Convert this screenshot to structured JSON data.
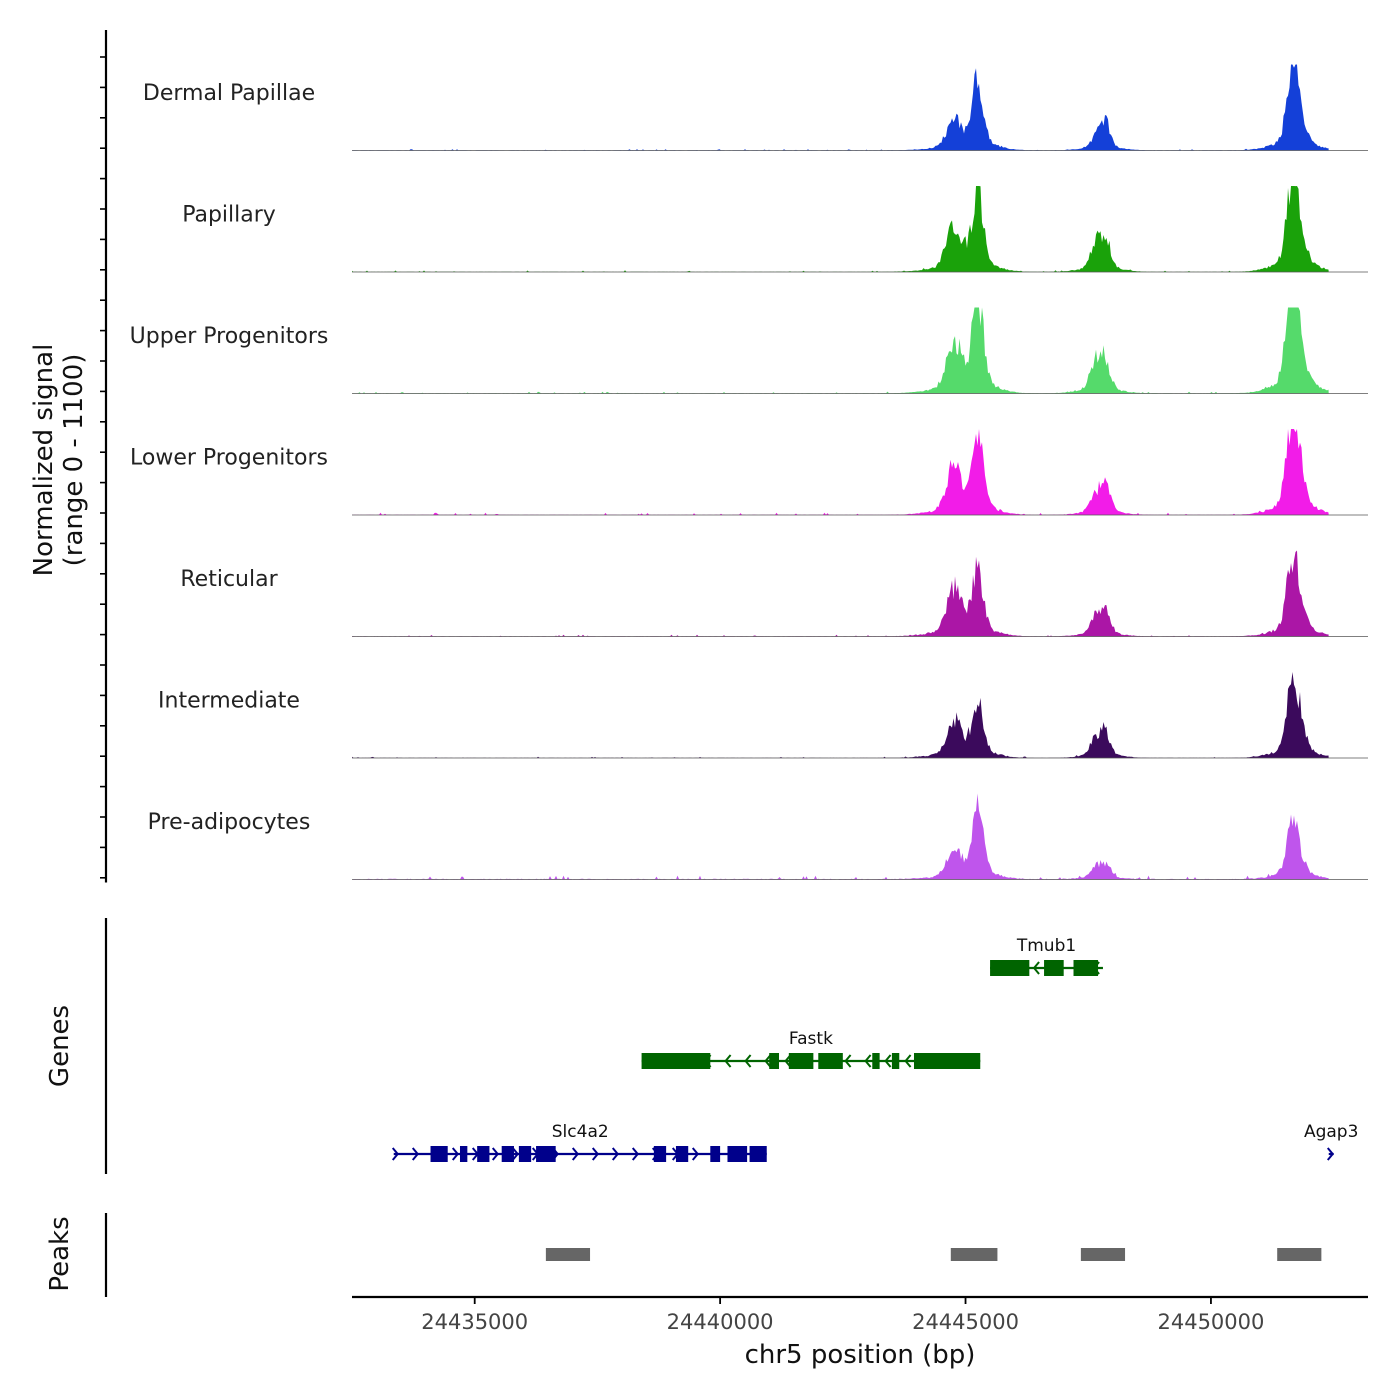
{
  "chart_data": {
    "type": "area",
    "title": "",
    "xlabel": "chr5 position (bp)",
    "ylabel_line1": "Normalized signal",
    "ylabel_line2": "(range 0 - 1100)",
    "xlim": [
      24432500,
      24453200
    ],
    "ylim": [
      0,
      1100
    ],
    "x_ticks": [
      24435000,
      24440000,
      24445000,
      24450000
    ],
    "x_tick_labels": [
      "24435000",
      "24440000",
      "24445000",
      "24450000"
    ],
    "peak_centers": [
      {
        "x": 24444770,
        "w": 150
      },
      {
        "x": 24445250,
        "w": 110
      },
      {
        "x": 24447650,
        "w": 110
      },
      {
        "x": 24447850,
        "w": 100
      },
      {
        "x": 24451650,
        "w": 110
      },
      {
        "x": 24451750,
        "w": 140
      }
    ],
    "series": [
      {
        "name": "Dermal Papillae",
        "color": "#1440D8",
        "peaks": [
          320,
          820,
          130,
          300,
          690,
          400
        ],
        "noise": 12,
        "minor": 10
      },
      {
        "name": "Papillary",
        "color": "#1AA20A",
        "peaks": [
          520,
          870,
          270,
          370,
          770,
          500
        ],
        "noise": 10,
        "minor": 12
      },
      {
        "name": "Upper Progenitors",
        "color": "#55DA6B",
        "peaks": [
          570,
          1060,
          330,
          330,
          1060,
          600
        ],
        "noise": 12,
        "minor": 14
      },
      {
        "name": "Lower Progenitors",
        "color": "#F21CE8",
        "peaks": [
          530,
          920,
          200,
          310,
          790,
          550
        ],
        "noise": 12,
        "minor": 18
      },
      {
        "name": "Reticular",
        "color": "#AB16A6",
        "peaks": [
          530,
          720,
          200,
          270,
          580,
          450
        ],
        "noise": 10,
        "minor": 14
      },
      {
        "name": "Intermediate",
        "color": "#3B0A5C",
        "peaks": [
          400,
          660,
          190,
          270,
          600,
          420
        ],
        "noise": 8,
        "minor": 10
      },
      {
        "name": "Pre-adipocytes",
        "color": "#BF55EC",
        "peaks": [
          300,
          820,
          120,
          150,
          470,
          250
        ],
        "noise": 24,
        "minor": 30
      }
    ],
    "genes": [
      {
        "name": "Tmub1",
        "strand": "-",
        "color": "#006400",
        "start": 24445500,
        "end": 24447800,
        "row": 0,
        "exons": [
          [
            24445500,
            24446300
          ],
          [
            24446600,
            24447000
          ],
          [
            24447200,
            24447700
          ]
        ],
        "label_pos": 24446650
      },
      {
        "name": "Fastk",
        "strand": "-",
        "color": "#006400",
        "start": 24438400,
        "end": 24445300,
        "row": 1,
        "exons": [
          [
            24438400,
            24439800
          ],
          [
            24441000,
            24441200
          ],
          [
            24441400,
            24441900
          ],
          [
            24442000,
            24442500
          ],
          [
            24443100,
            24443250
          ],
          [
            24443500,
            24443650
          ],
          [
            24443950,
            24445300
          ]
        ],
        "label_pos": 24441850
      },
      {
        "name": "Slc4a2",
        "strand": "+",
        "color": "#00008B",
        "start": 24433350,
        "end": 24440950,
        "row": 2,
        "exons": [
          [
            24434100,
            24434450
          ],
          [
            24434700,
            24434850
          ],
          [
            24435050,
            24435300
          ],
          [
            24435550,
            24435800
          ],
          [
            24435900,
            24436150
          ],
          [
            24436250,
            24436650
          ],
          [
            24438650,
            24438900
          ],
          [
            24439100,
            24439350
          ],
          [
            24439800,
            24440000
          ],
          [
            24440150,
            24440550
          ],
          [
            24440600,
            24440950
          ]
        ],
        "label_pos": 24437150
      },
      {
        "name": "Agap3",
        "strand": "+",
        "color": "#00008B",
        "start": 24452400,
        "end": 24452500,
        "row": 2,
        "exons": [],
        "label_pos": 24452450
      }
    ],
    "peaks_track": [
      {
        "start": 24436450,
        "end": 24437350
      },
      {
        "start": 24444700,
        "end": 24445650
      },
      {
        "start": 24447350,
        "end": 24448250
      },
      {
        "start": 24451350,
        "end": 24452250
      }
    ],
    "panel_labels": [
      "Genes",
      "Peaks"
    ]
  }
}
